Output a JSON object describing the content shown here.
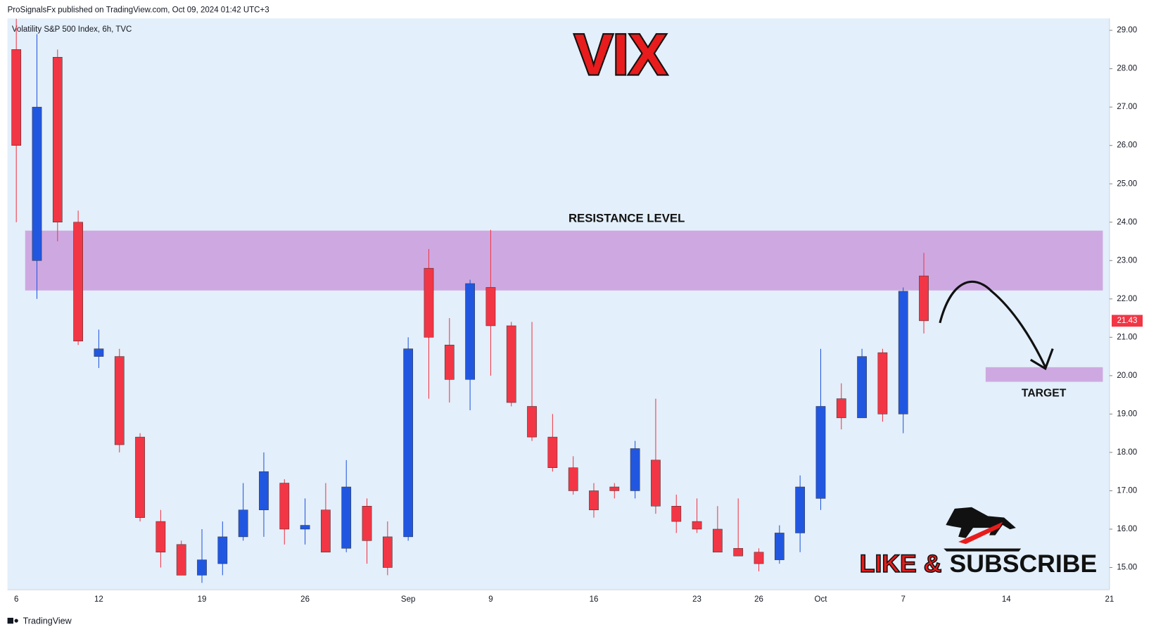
{
  "header": "ProSignalsFx published on TradingView.com, Oct 09, 2024 01:42 UTC+3",
  "footer": "TradingView",
  "promo": {
    "part1": "LIKE &",
    "part2": "SUBSCRIBE"
  },
  "chart_data": {
    "type": "candlestick",
    "title": "VIX",
    "subtitle": "Volatility S&P 500 Index, 6h, TVC",
    "categories": [
      "6",
      null,
      null,
      null,
      "12",
      null,
      null,
      null,
      null,
      "19",
      null,
      null,
      null,
      null,
      "26",
      null,
      null,
      null,
      null,
      "Sep",
      null,
      null,
      null,
      "9",
      null,
      null,
      null,
      null,
      "16",
      null,
      null,
      null,
      null,
      "23",
      null,
      null,
      "26",
      null,
      null,
      "Oct",
      null,
      null,
      null,
      "7",
      null,
      null,
      null,
      null,
      "14",
      null,
      null,
      null,
      null,
      "21"
    ],
    "open": [
      28.5,
      23.0,
      28.3,
      24.0,
      20.5,
      20.5,
      18.4,
      16.2,
      15.6,
      14.8,
      15.1,
      15.8,
      16.5,
      17.2,
      16.0,
      16.5,
      15.5,
      16.6,
      15.8,
      15.8,
      22.8,
      20.8,
      19.9,
      22.3,
      21.3,
      19.2,
      18.4,
      17.6,
      17.0,
      17.1,
      17.0,
      17.8,
      16.6,
      16.2,
      16.0,
      15.5,
      15.4,
      15.2,
      15.9,
      16.8,
      19.4,
      18.9,
      20.6,
      19.0,
      22.6,
      null,
      null,
      null,
      null,
      null,
      null,
      null,
      null,
      null
    ],
    "high": [
      29.3,
      28.9,
      28.5,
      24.3,
      21.2,
      20.7,
      18.5,
      16.5,
      15.7,
      16.0,
      16.2,
      17.2,
      18.0,
      17.3,
      16.8,
      17.2,
      17.8,
      16.8,
      16.2,
      21.0,
      23.3,
      21.5,
      22.5,
      23.8,
      21.4,
      21.4,
      19.0,
      17.9,
      17.2,
      17.2,
      18.3,
      19.4,
      16.9,
      16.8,
      16.6,
      16.8,
      15.5,
      16.1,
      17.4,
      20.7,
      19.8,
      20.7,
      20.7,
      22.3,
      23.2,
      null,
      null,
      null,
      null,
      null,
      null,
      null,
      null,
      null
    ],
    "low": [
      24.0,
      22.0,
      23.5,
      20.8,
      20.2,
      18.0,
      16.2,
      15.0,
      14.8,
      14.6,
      14.8,
      15.7,
      15.8,
      15.6,
      15.6,
      15.4,
      15.4,
      15.1,
      14.8,
      15.7,
      19.4,
      19.3,
      19.1,
      20.0,
      19.2,
      18.3,
      17.5,
      16.9,
      16.3,
      16.8,
      16.8,
      16.4,
      15.9,
      15.9,
      15.4,
      15.3,
      14.9,
      15.1,
      15.4,
      16.5,
      18.6,
      18.9,
      18.8,
      18.5,
      21.1,
      null,
      null,
      null,
      null,
      null,
      null,
      null,
      null,
      null
    ],
    "close": [
      26.0,
      27.0,
      24.0,
      20.9,
      20.7,
      18.2,
      16.3,
      15.4,
      14.8,
      15.2,
      15.8,
      16.5,
      17.5,
      16.0,
      16.1,
      15.4,
      17.1,
      15.7,
      15.0,
      20.7,
      21.0,
      19.9,
      22.4,
      21.3,
      19.3,
      18.4,
      17.6,
      17.0,
      16.5,
      17.0,
      18.1,
      16.6,
      16.2,
      16.0,
      15.4,
      15.3,
      15.1,
      15.9,
      17.1,
      19.2,
      18.9,
      20.5,
      19.0,
      22.2,
      21.43,
      null,
      null,
      null,
      null,
      null,
      null,
      null,
      null,
      null
    ],
    "up_color": "#2157e0",
    "down_color": "#f23645",
    "ylim": [
      14.42,
      29.31
    ],
    "yticks": [
      {
        "value": 15,
        "label": "15.00"
      },
      {
        "value": 16,
        "label": "16.00"
      },
      {
        "value": 17,
        "label": "17.00"
      },
      {
        "value": 18,
        "label": "18.00"
      },
      {
        "value": 19,
        "label": "19.00"
      },
      {
        "value": 20,
        "label": "20.00"
      },
      {
        "value": 21,
        "label": "21.00"
      },
      {
        "value": 22,
        "label": "22.00"
      },
      {
        "value": 23,
        "label": "23.00"
      },
      {
        "value": 24,
        "label": "24.00"
      },
      {
        "value": 25,
        "label": "25.00"
      },
      {
        "value": 26,
        "label": "26.00"
      },
      {
        "value": 27,
        "label": "27.00"
      },
      {
        "value": 28,
        "label": "28.00"
      },
      {
        "value": 29,
        "label": "29.00"
      }
    ],
    "zones": [
      {
        "label": "RESISTANCE LEVEL",
        "range": [
          22.22,
          23.78
        ],
        "color": "#cea9e1"
      },
      {
        "label": "TARGET",
        "range": [
          19.84,
          20.22
        ],
        "color": "#cea9e1"
      }
    ]
  }
}
